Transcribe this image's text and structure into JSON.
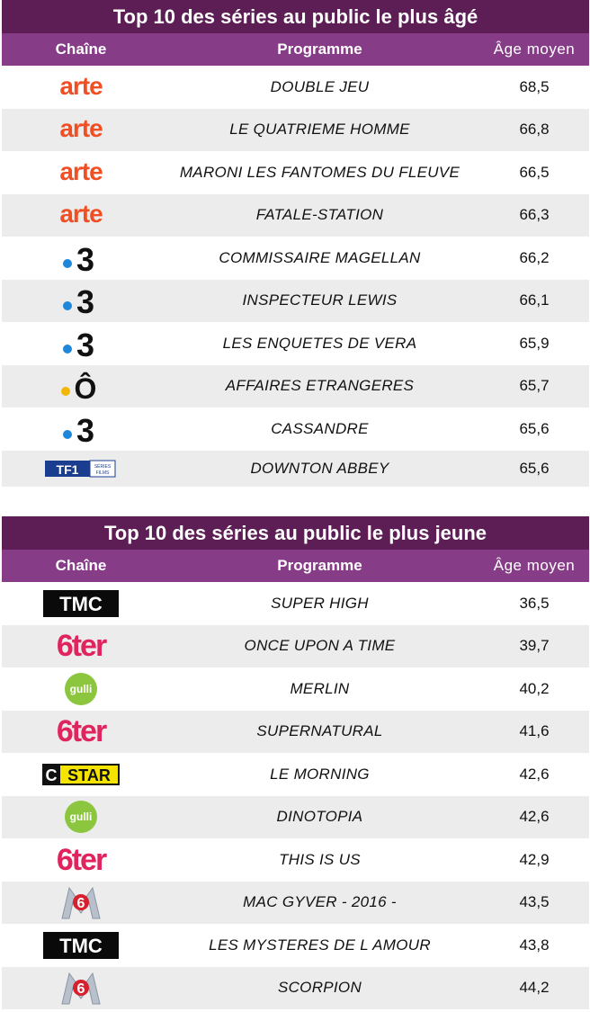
{
  "oldest": {
    "title": "Top 10 des séries au public le plus âgé",
    "headers": {
      "channel": "Chaîne",
      "program": "Programme",
      "age": "Âge moyen"
    },
    "rows": [
      {
        "channel": "arte",
        "program": "DOUBLE JEU",
        "age": "68,5"
      },
      {
        "channel": "arte",
        "program": "LE QUATRIEME HOMME",
        "age": "66,8"
      },
      {
        "channel": "arte",
        "program": "MARONI LES FANTOMES DU FLEUVE",
        "age": "66,5"
      },
      {
        "channel": "arte",
        "program": "FATALE-STATION",
        "age": "66,3"
      },
      {
        "channel": "france3",
        "program": "COMMISSAIRE MAGELLAN",
        "age": "66,2"
      },
      {
        "channel": "france3",
        "program": "INSPECTEUR LEWIS",
        "age": "66,1"
      },
      {
        "channel": "france3",
        "program": "LES ENQUETES DE VERA",
        "age": "65,9"
      },
      {
        "channel": "franceo",
        "program": "AFFAIRES ETRANGERES",
        "age": "65,7"
      },
      {
        "channel": "france3",
        "program": "CASSANDRE",
        "age": "65,6"
      },
      {
        "channel": "tfseries",
        "program": "DOWNTON ABBEY",
        "age": "65,6"
      }
    ]
  },
  "youngest": {
    "title": "Top 10 des séries au public le plus jeune",
    "headers": {
      "channel": "Chaîne",
      "program": "Programme",
      "age": "Âge moyen"
    },
    "rows": [
      {
        "channel": "tmc",
        "program": "SUPER HIGH",
        "age": "36,5"
      },
      {
        "channel": "6ter",
        "program": "ONCE UPON A TIME",
        "age": "39,7"
      },
      {
        "channel": "gulli",
        "program": "MERLIN",
        "age": "40,2"
      },
      {
        "channel": "6ter",
        "program": "SUPERNATURAL",
        "age": "41,6"
      },
      {
        "channel": "cstar",
        "program": "LE MORNING",
        "age": "42,6"
      },
      {
        "channel": "gulli",
        "program": "DINOTOPIA",
        "age": "42,6"
      },
      {
        "channel": "6ter",
        "program": "THIS IS US",
        "age": "42,9"
      },
      {
        "channel": "m6",
        "program": "MAC GYVER - 2016 -",
        "age": "43,5"
      },
      {
        "channel": "tmc",
        "program": "LES MYSTERES DE L AMOUR",
        "age": "43,8"
      },
      {
        "channel": "m6",
        "program": "SCORPION",
        "age": "44,2"
      }
    ]
  },
  "logos": {
    "arte": {
      "text": "arte",
      "color": "#f04e23"
    },
    "france3": {
      "text": "3",
      "dot_color": "#1e87d9"
    },
    "franceo": {
      "text": "Ô",
      "dot_color": "#f2b705"
    },
    "tfseries": {
      "text": "TF1",
      "sub": "SÉRIES FILMS",
      "color": "#1a3d8f"
    },
    "tmc": {
      "text": "TMC"
    },
    "6ter": {
      "text": "6ter",
      "color": "#e0245e"
    },
    "gulli": {
      "text": "gulli",
      "color": "#8cc63f"
    },
    "cstar": {
      "text": "CSTAR",
      "color": "#f5e400"
    },
    "m6": {
      "text": "6",
      "color": "#d6202e"
    }
  }
}
